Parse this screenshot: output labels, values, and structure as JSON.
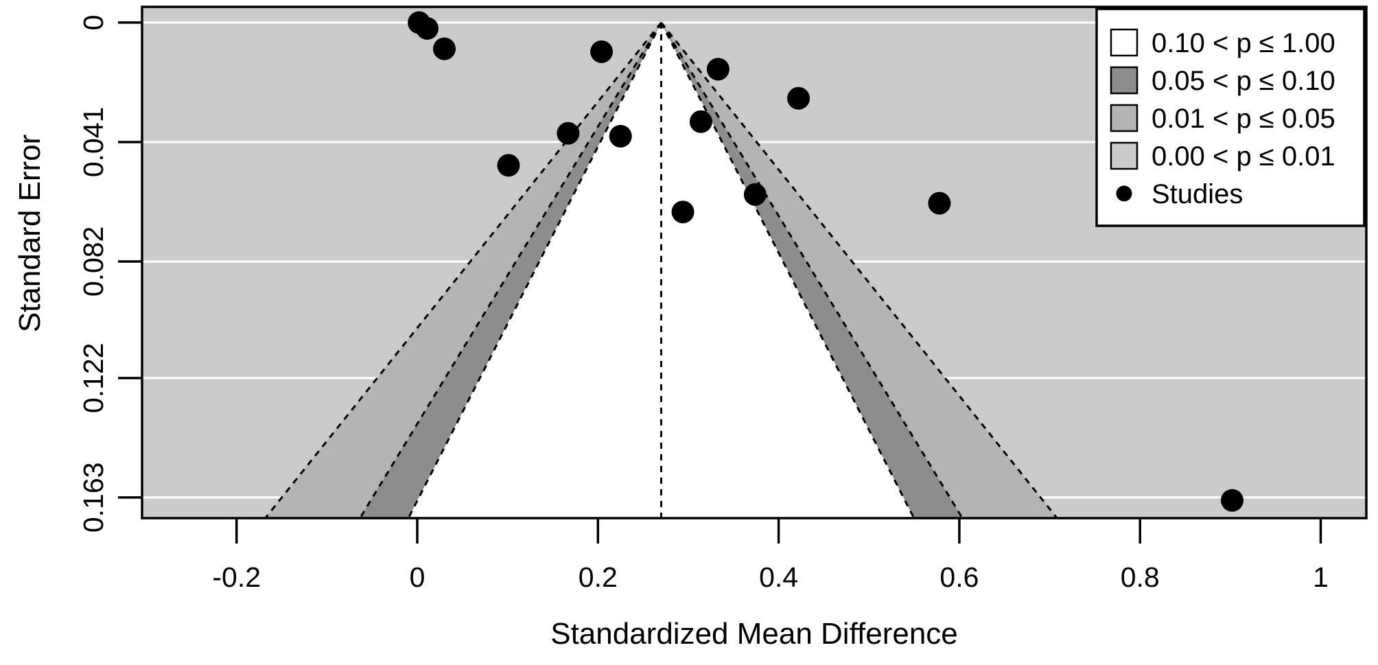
{
  "chart_data": {
    "type": "scatter",
    "variant": "contour-enhanced-funnel-plot",
    "title": "",
    "xlabel": "Standardized Mean Difference",
    "ylabel": "Standard Error",
    "x_ticks": [
      -0.2,
      0,
      0.2,
      0.4,
      0.6,
      0.8,
      1
    ],
    "x_tick_labels": [
      "-0.2",
      "0",
      "0.2",
      "0.4",
      "0.6",
      "0.8",
      "1"
    ],
    "y_ticks": [
      0,
      0.041,
      0.082,
      0.122,
      0.163
    ],
    "y_tick_labels": [
      "0",
      "0.041",
      "0.082",
      "0.122",
      "0.163"
    ],
    "xlim": [
      -0.3046,
      1.0505
    ],
    "ylim_se": [
      -0.0054,
      0.1701
    ],
    "y_axis_inverted": true,
    "grid": {
      "on": true,
      "color": "#ffffff"
    },
    "funnel": {
      "center_estimate": 0.27,
      "apex_se": 0,
      "center_line_style": "dashed",
      "contours": [
        {
          "name": "p10-p100",
          "z": 1.645,
          "fill": "#ffffff",
          "label": "0.10 < p ≤ 1.00"
        },
        {
          "name": "p05-p10",
          "z": 1.96,
          "fill": "#8d8d8d",
          "label": "0.05 < p ≤ 0.10"
        },
        {
          "name": "p01-p05",
          "z": 2.576,
          "fill": "#b4b4b4",
          "label": "0.01 < p ≤ 0.05"
        },
        {
          "name": "p00-p01",
          "z": null,
          "fill": "#cbcbcb",
          "label": "0.00 < p ≤ 0.01"
        }
      ]
    },
    "studies": [
      {
        "smd": 0.002,
        "se": 0.0
      },
      {
        "smd": 0.011,
        "se": 0.002
      },
      {
        "smd": 0.03,
        "se": 0.009
      },
      {
        "smd": 0.204,
        "se": 0.01
      },
      {
        "smd": 0.333,
        "se": 0.016
      },
      {
        "smd": 0.422,
        "se": 0.026
      },
      {
        "smd": 0.314,
        "se": 0.034
      },
      {
        "smd": 0.167,
        "se": 0.038
      },
      {
        "smd": 0.225,
        "se": 0.039
      },
      {
        "smd": 0.101,
        "se": 0.049
      },
      {
        "smd": 0.374,
        "se": 0.059
      },
      {
        "smd": 0.578,
        "se": 0.062
      },
      {
        "smd": 0.294,
        "se": 0.065
      },
      {
        "smd": 0.902,
        "se": 0.164
      }
    ],
    "legend": {
      "position": "top-right",
      "items": [
        {
          "kind": "swatch",
          "fill": "#ffffff",
          "label": "0.10 < p ≤ 1.00"
        },
        {
          "kind": "swatch",
          "fill": "#8d8d8d",
          "label": "0.05 < p ≤ 0.10"
        },
        {
          "kind": "swatch",
          "fill": "#b4b4b4",
          "label": "0.01 < p ≤ 0.05"
        },
        {
          "kind": "swatch",
          "fill": "#cbcbcb",
          "label": "0.00 < p ≤ 0.01"
        },
        {
          "kind": "dot",
          "fill": "#000000",
          "label": "Studies"
        }
      ]
    },
    "colors": {
      "background_shade": "#cbcbcb",
      "point": "#000000",
      "axis_line": "#000000",
      "contour_edge_line": "#000000",
      "legend_background": "#ffffff",
      "figure_background": "#ffffff"
    }
  }
}
